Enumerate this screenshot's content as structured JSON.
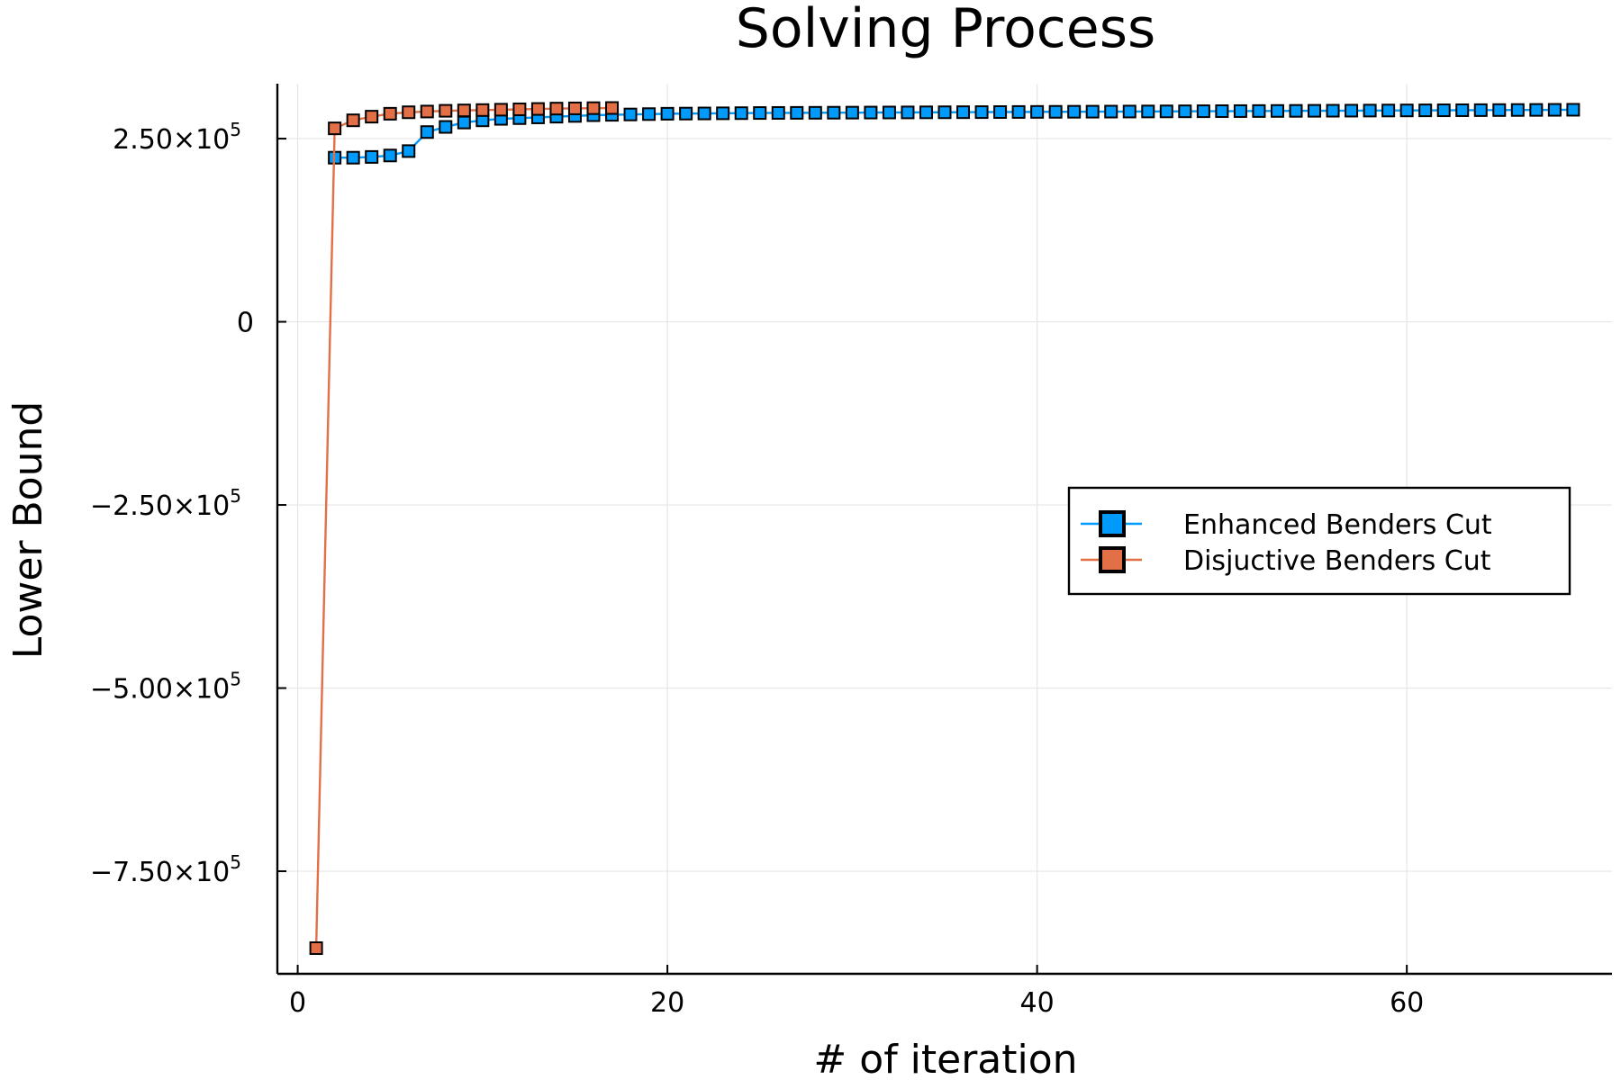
{
  "chart_data": {
    "type": "line",
    "title": "Solving Process",
    "xlabel": "# of iteration",
    "ylabel": "Lower Bound",
    "xlim": [
      -1.1,
      71.1
    ],
    "ylim": [
      -890000,
      325000
    ],
    "x_ticks": [
      {
        "value": 0,
        "label": "0"
      },
      {
        "value": 20,
        "label": "20"
      },
      {
        "value": 40,
        "label": "40"
      },
      {
        "value": 60,
        "label": "60"
      }
    ],
    "y_ticks": [
      {
        "value": 250000,
        "mantissa": "2.50×10",
        "exp": "5"
      },
      {
        "value": 0,
        "mantissa": "0",
        "exp": ""
      },
      {
        "value": -250000,
        "mantissa": "−2.50×10",
        "exp": "5"
      },
      {
        "value": -500000,
        "mantissa": "−5.00×10",
        "exp": "5"
      },
      {
        "value": -750000,
        "mantissa": "−7.50×10",
        "exp": "5"
      }
    ],
    "grid": true,
    "legend_position": "right",
    "series": [
      {
        "name": "Enhanced Benders Cut",
        "color": "#009AFA",
        "x": [
          2,
          3,
          4,
          5,
          6,
          7,
          8,
          9,
          10,
          11,
          12,
          13,
          14,
          15,
          16,
          17,
          18,
          19,
          20,
          21,
          22,
          23,
          24,
          25,
          26,
          27,
          28,
          29,
          30,
          31,
          32,
          33,
          34,
          35,
          36,
          37,
          38,
          39,
          40,
          41,
          42,
          43,
          44,
          45,
          46,
          47,
          48,
          49,
          50,
          51,
          52,
          53,
          54,
          55,
          56,
          57,
          58,
          59,
          60,
          61,
          62,
          63,
          64,
          65,
          66,
          67,
          68,
          69
        ],
        "y": [
          224000,
          224000,
          225000,
          227000,
          233000,
          259000,
          266000,
          272000,
          275000,
          277000,
          278000,
          279000,
          280000,
          281000,
          282000,
          282500,
          283000,
          283500,
          284000,
          284200,
          284400,
          284600,
          284800,
          285000,
          285100,
          285200,
          285300,
          285400,
          285500,
          285600,
          285700,
          285800,
          285900,
          286000,
          286100,
          286200,
          286300,
          286400,
          286500,
          286600,
          286700,
          286800,
          286900,
          287000,
          287100,
          287200,
          287300,
          287400,
          287500,
          287600,
          287700,
          287800,
          287900,
          288000,
          288100,
          288200,
          288300,
          288400,
          288500,
          288600,
          288700,
          288800,
          288900,
          289000,
          289100,
          289200,
          289300,
          289400
        ]
      },
      {
        "name": "Disjuctive Benders Cut",
        "color": "#E26F46",
        "x": [
          1,
          2,
          3,
          4,
          5,
          6,
          7,
          8,
          9,
          10,
          11,
          12,
          13,
          14,
          15,
          16,
          17
        ],
        "y": [
          -855000,
          264000,
          275000,
          280000,
          284000,
          286000,
          287000,
          288000,
          288500,
          289000,
          289500,
          290000,
          290500,
          291000,
          291300,
          291600,
          291800
        ]
      }
    ]
  }
}
